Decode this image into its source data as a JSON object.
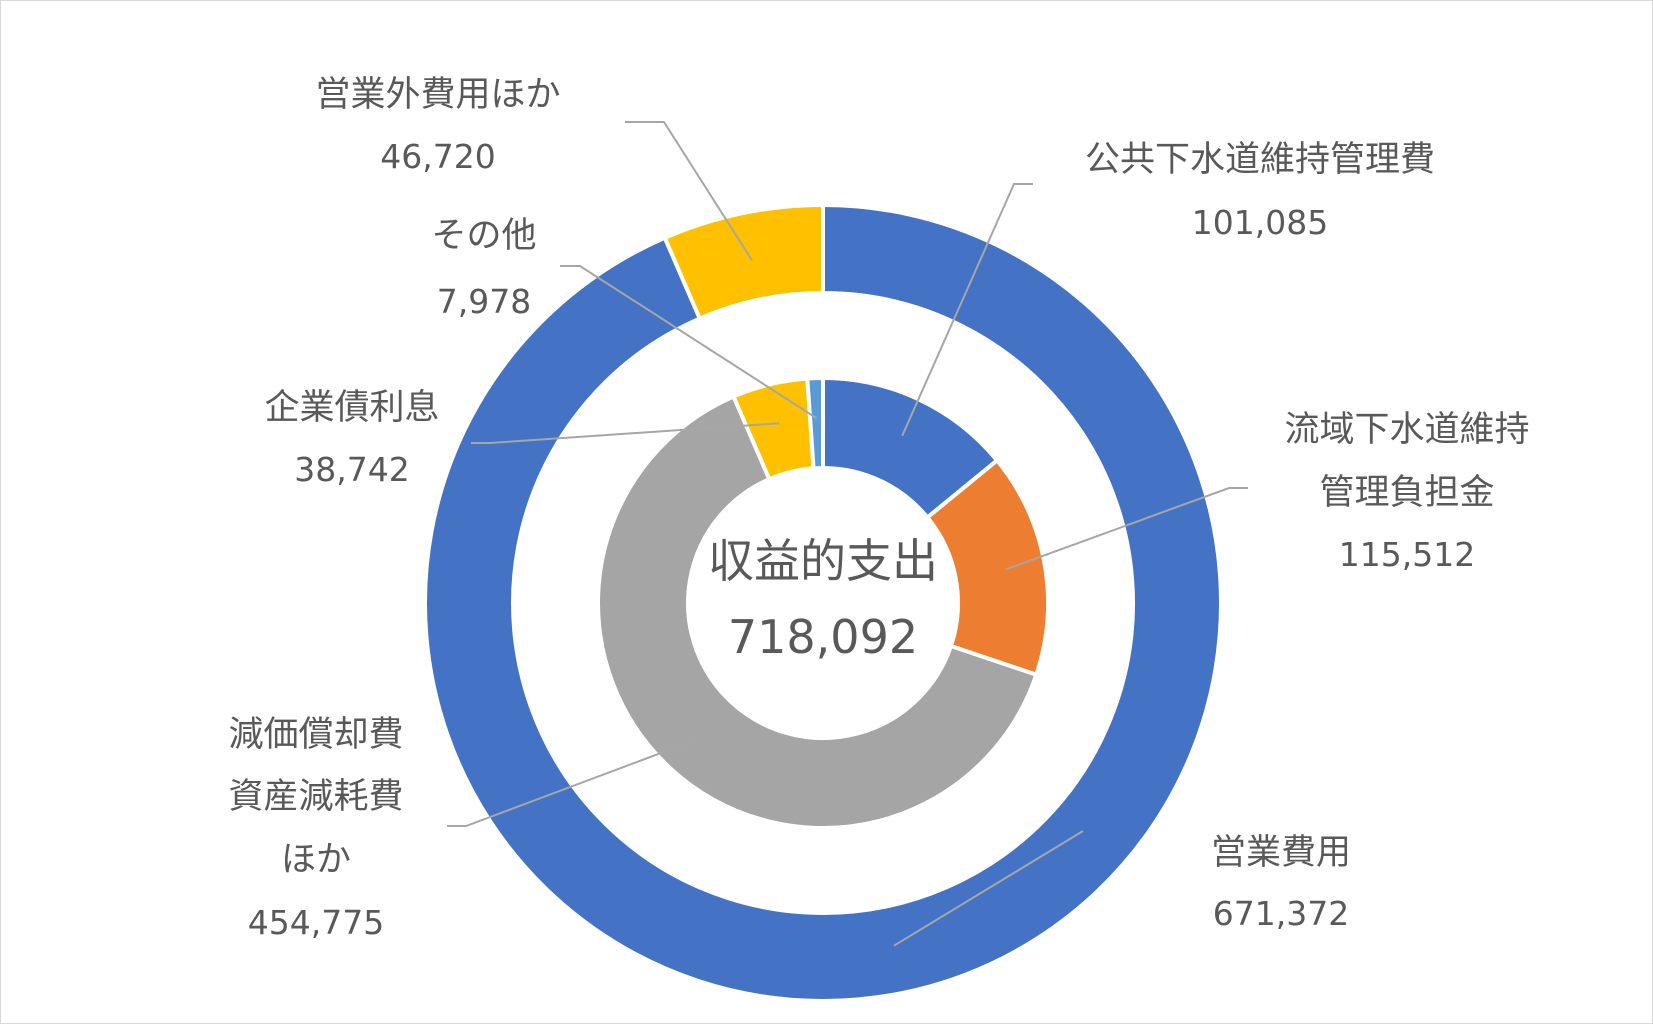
{
  "chart_data": {
    "type": "doughnut",
    "center": {
      "title": "収益的支出",
      "total": "718,092"
    },
    "outer_ring": [
      {
        "name": "営業費用",
        "value": 671372,
        "value_label": "671,372",
        "color": "#4472C4"
      },
      {
        "name": "営業外費用ほか",
        "value": 46720,
        "value_label": "46,720",
        "color": "#FFC000"
      }
    ],
    "inner_ring": [
      {
        "name": "公共下水道維持管理費",
        "value": 101085,
        "value_label": "101,085",
        "color": "#4472C4"
      },
      {
        "name": "流域下水道維持管理負担金",
        "label_lines": [
          "流域下水道維持",
          "管理負担金"
        ],
        "value": 115512,
        "value_label": "115,512",
        "color": "#ED7D31"
      },
      {
        "name": "減価償却費資産減耗費ほか",
        "label_lines": [
          "減価償却費",
          "資産減耗費",
          "ほか"
        ],
        "value": 454775,
        "value_label": "454,775",
        "color": "#A5A5A5"
      },
      {
        "name": "企業債利息",
        "value": 38742,
        "value_label": "38,742",
        "color": "#FFC000"
      },
      {
        "name": "その他",
        "value": 7978,
        "value_label": "7,978",
        "color": "#5B9BD5"
      }
    ],
    "legend": "none"
  }
}
